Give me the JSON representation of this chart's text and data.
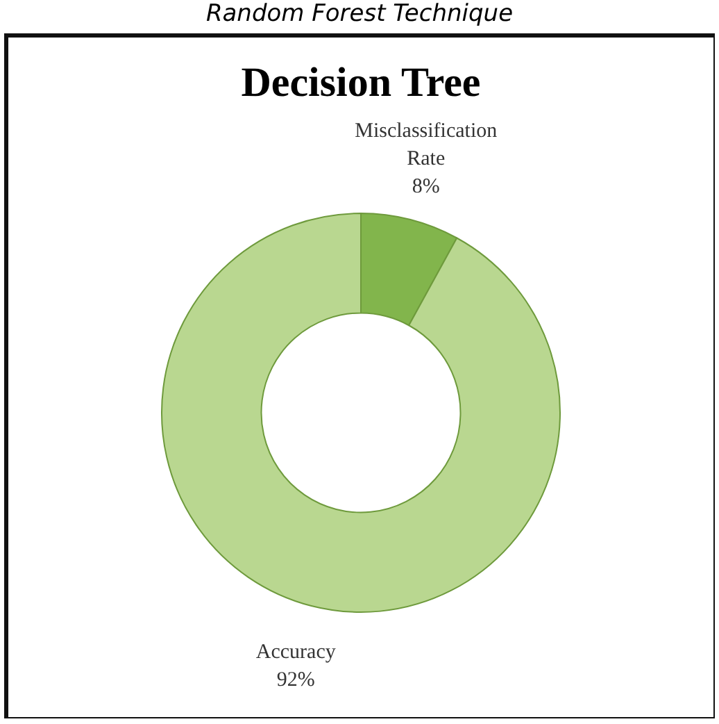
{
  "chart_data": {
    "type": "donut",
    "title": "Decision Tree",
    "annotations": [
      "Random Forest Technique"
    ],
    "categories": [
      "Misclassification Rate",
      "Accuracy"
    ],
    "values": [
      8,
      92
    ],
    "value_labels": [
      "8%",
      "92%"
    ],
    "colors": [
      "#82b54c",
      "#b9d790"
    ]
  }
}
